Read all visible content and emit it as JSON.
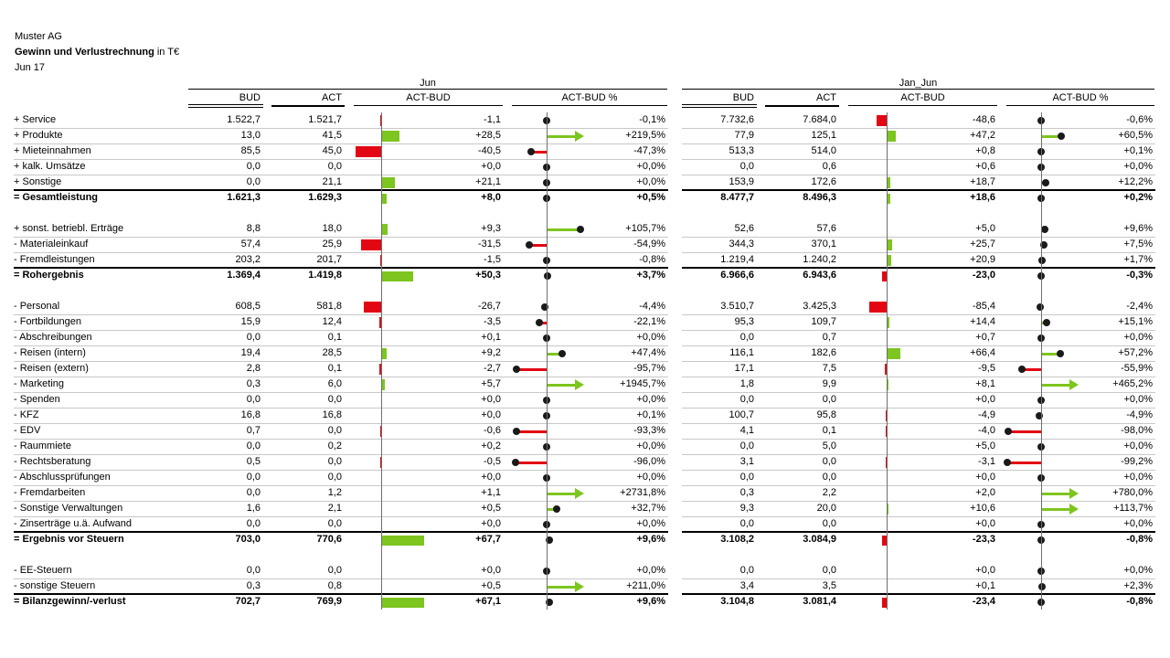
{
  "header": {
    "company": "Muster AG",
    "report_title": "Gewinn und Verlustrechnung",
    "unit": "in T€",
    "period": "Jun 17"
  },
  "colors": {
    "positive": "#7dc51f",
    "negative": "#e30613",
    "dot": "#1a1a1a",
    "axis": "#6e6e6e"
  },
  "sections": [
    {
      "key": "jun",
      "label": "Jun",
      "bud_label": "BUD",
      "act_label": "ACT",
      "abs_label": "ACT-BUD",
      "pct_label": "ACT-BUD %"
    },
    {
      "key": "jan_jun",
      "label": "Jan_Jun",
      "bud_label": "BUD",
      "act_label": "ACT",
      "abs_label": "ACT-BUD",
      "pct_label": "ACT-BUD %"
    }
  ],
  "chart_data": {
    "type": "table",
    "columns": [
      "BUD",
      "ACT",
      "ACT-BUD",
      "ACT-BUD %"
    ],
    "rows": [
      {
        "label": "+ Service",
        "jun": {
          "bud": "1.522,7",
          "act": "1.521,7",
          "abs": "-1,1",
          "pct": "-0,1%",
          "abs_v": -1.1,
          "pct_v": -0.1
        },
        "ytd": {
          "bud": "7.732,6",
          "act": "7.684,0",
          "abs": "-48,6",
          "pct": "-0,6%",
          "abs_v": -48.6,
          "pct_v": -0.6
        }
      },
      {
        "label": "+ Produkte",
        "jun": {
          "bud": "13,0",
          "act": "41,5",
          "abs": "+28,5",
          "pct": "+219,5%",
          "abs_v": 28.5,
          "pct_v": 219.5
        },
        "ytd": {
          "bud": "77,9",
          "act": "125,1",
          "abs": "+47,2",
          "pct": "+60,5%",
          "abs_v": 47.2,
          "pct_v": 60.5
        }
      },
      {
        "label": "+ Mieteinnahmen",
        "jun": {
          "bud": "85,5",
          "act": "45,0",
          "abs": "-40,5",
          "pct": "-47,3%",
          "abs_v": -40.5,
          "pct_v": -47.3
        },
        "ytd": {
          "bud": "513,3",
          "act": "514,0",
          "abs": "+0,8",
          "pct": "+0,1%",
          "abs_v": 0.8,
          "pct_v": 0.1
        }
      },
      {
        "label": "+ kalk. Umsätze",
        "jun": {
          "bud": "0,0",
          "act": "0,0",
          "abs": "+0,0",
          "pct": "+0,0%",
          "abs_v": 0.0,
          "pct_v": 0.0
        },
        "ytd": {
          "bud": "0,0",
          "act": "0,6",
          "abs": "+0,6",
          "pct": "+0,0%",
          "abs_v": 0.6,
          "pct_v": 0.0
        }
      },
      {
        "label": "+ Sonstige",
        "line": "black",
        "jun": {
          "bud": "0,0",
          "act": "21,1",
          "abs": "+21,1",
          "pct": "+0,0%",
          "abs_v": 21.1,
          "pct_v": 0.0
        },
        "ytd": {
          "bud": "153,9",
          "act": "172,6",
          "abs": "+18,7",
          "pct": "+12,2%",
          "abs_v": 18.7,
          "pct_v": 12.2
        }
      },
      {
        "label": "= Gesamtleistung",
        "bold": true,
        "jun": {
          "bud": "1.621,3",
          "act": "1.629,3",
          "abs": "+8,0",
          "pct": "+0,5%",
          "abs_v": 8.0,
          "pct_v": 0.5
        },
        "ytd": {
          "bud": "8.477,7",
          "act": "8.496,3",
          "abs": "+18,6",
          "pct": "+0,2%",
          "abs_v": 18.6,
          "pct_v": 0.2
        }
      },
      {
        "spacer": true
      },
      {
        "label": "+ sonst. betriebl. Erträge",
        "jun": {
          "bud": "8,8",
          "act": "18,0",
          "abs": "+9,3",
          "pct": "+105,7%",
          "abs_v": 9.3,
          "pct_v": 105.7
        },
        "ytd": {
          "bud": "52,6",
          "act": "57,6",
          "abs": "+5,0",
          "pct": "+9,6%",
          "abs_v": 5.0,
          "pct_v": 9.6
        }
      },
      {
        "label": "- Materialeinkauf",
        "jun": {
          "bud": "57,4",
          "act": "25,9",
          "abs": "-31,5",
          "pct": "-54,9%",
          "abs_v": -31.5,
          "pct_v": -54.9
        },
        "ytd": {
          "bud": "344,3",
          "act": "370,1",
          "abs": "+25,7",
          "pct": "+7,5%",
          "abs_v": 25.7,
          "pct_v": 7.5
        }
      },
      {
        "label": "- Fremdleistungen",
        "line": "black",
        "jun": {
          "bud": "203,2",
          "act": "201,7",
          "abs": "-1,5",
          "pct": "-0,8%",
          "abs_v": -1.5,
          "pct_v": -0.8
        },
        "ytd": {
          "bud": "1.219,4",
          "act": "1.240,2",
          "abs": "+20,9",
          "pct": "+1,7%",
          "abs_v": 20.9,
          "pct_v": 1.7
        }
      },
      {
        "label": "= Rohergebnis",
        "bold": true,
        "jun": {
          "bud": "1.369,4",
          "act": "1.419,8",
          "abs": "+50,3",
          "pct": "+3,7%",
          "abs_v": 50.3,
          "pct_v": 3.7
        },
        "ytd": {
          "bud": "6.966,6",
          "act": "6.943,6",
          "abs": "-23,0",
          "pct": "-0,3%",
          "abs_v": -23.0,
          "pct_v": -0.3
        }
      },
      {
        "spacer": true
      },
      {
        "label": "- Personal",
        "jun": {
          "bud": "608,5",
          "act": "581,8",
          "abs": "-26,7",
          "pct": "-4,4%",
          "abs_v": -26.7,
          "pct_v": -4.4
        },
        "ytd": {
          "bud": "3.510,7",
          "act": "3.425,3",
          "abs": "-85,4",
          "pct": "-2,4%",
          "abs_v": -85.4,
          "pct_v": -2.4
        }
      },
      {
        "label": "- Fortbildungen",
        "jun": {
          "bud": "15,9",
          "act": "12,4",
          "abs": "-3,5",
          "pct": "-22,1%",
          "abs_v": -3.5,
          "pct_v": -22.1
        },
        "ytd": {
          "bud": "95,3",
          "act": "109,7",
          "abs": "+14,4",
          "pct": "+15,1%",
          "abs_v": 14.4,
          "pct_v": 15.1
        }
      },
      {
        "label": "- Abschreibungen",
        "jun": {
          "bud": "0,0",
          "act": "0,1",
          "abs": "+0,1",
          "pct": "+0,0%",
          "abs_v": 0.1,
          "pct_v": 0.0
        },
        "ytd": {
          "bud": "0,0",
          "act": "0,7",
          "abs": "+0,7",
          "pct": "+0,0%",
          "abs_v": 0.7,
          "pct_v": 0.0
        }
      },
      {
        "label": "- Reisen (intern)",
        "jun": {
          "bud": "19,4",
          "act": "28,5",
          "abs": "+9,2",
          "pct": "+47,4%",
          "abs_v": 9.2,
          "pct_v": 47.4
        },
        "ytd": {
          "bud": "116,1",
          "act": "182,6",
          "abs": "+66,4",
          "pct": "+57,2%",
          "abs_v": 66.4,
          "pct_v": 57.2
        }
      },
      {
        "label": "- Reisen (extern)",
        "jun": {
          "bud": "2,8",
          "act": "0,1",
          "abs": "-2,7",
          "pct": "-95,7%",
          "abs_v": -2.7,
          "pct_v": -95.7
        },
        "ytd": {
          "bud": "17,1",
          "act": "7,5",
          "abs": "-9,5",
          "pct": "-55,9%",
          "abs_v": -9.5,
          "pct_v": -55.9
        }
      },
      {
        "label": "- Marketing",
        "jun": {
          "bud": "0,3",
          "act": "6,0",
          "abs": "+5,7",
          "pct": "+1945,7%",
          "abs_v": 5.7,
          "pct_v": 1945.7
        },
        "ytd": {
          "bud": "1,8",
          "act": "9,9",
          "abs": "+8,1",
          "pct": "+465,2%",
          "abs_v": 8.1,
          "pct_v": 465.2
        }
      },
      {
        "label": "- Spenden",
        "jun": {
          "bud": "0,0",
          "act": "0,0",
          "abs": "+0,0",
          "pct": "+0,0%",
          "abs_v": 0.0,
          "pct_v": 0.0
        },
        "ytd": {
          "bud": "0,0",
          "act": "0,0",
          "abs": "+0,0",
          "pct": "+0,0%",
          "abs_v": 0.0,
          "pct_v": 0.0
        }
      },
      {
        "label": "- KFZ",
        "jun": {
          "bud": "16,8",
          "act": "16,8",
          "abs": "+0,0",
          "pct": "+0,1%",
          "abs_v": 0.0,
          "pct_v": 0.1
        },
        "ytd": {
          "bud": "100,7",
          "act": "95,8",
          "abs": "-4,9",
          "pct": "-4,9%",
          "abs_v": -4.9,
          "pct_v": -4.9
        }
      },
      {
        "label": "- EDV",
        "jun": {
          "bud": "0,7",
          "act": "0,0",
          "abs": "-0,6",
          "pct": "-93,3%",
          "abs_v": -0.6,
          "pct_v": -93.3
        },
        "ytd": {
          "bud": "4,1",
          "act": "0,1",
          "abs": "-4,0",
          "pct": "-98,0%",
          "abs_v": -4.0,
          "pct_v": -98.0
        }
      },
      {
        "label": "- Raummiete",
        "jun": {
          "bud": "0,0",
          "act": "0,2",
          "abs": "+0,2",
          "pct": "+0,0%",
          "abs_v": 0.2,
          "pct_v": 0.0
        },
        "ytd": {
          "bud": "0,0",
          "act": "5,0",
          "abs": "+5,0",
          "pct": "+0,0%",
          "abs_v": 5.0,
          "pct_v": 0.0
        }
      },
      {
        "label": "- Rechtsberatung",
        "jun": {
          "bud": "0,5",
          "act": "0,0",
          "abs": "-0,5",
          "pct": "-96,0%",
          "abs_v": -0.5,
          "pct_v": -96.0
        },
        "ytd": {
          "bud": "3,1",
          "act": "0,0",
          "abs": "-3,1",
          "pct": "-99,2%",
          "abs_v": -3.1,
          "pct_v": -99.2
        }
      },
      {
        "label": "- Abschlussprüfungen",
        "jun": {
          "bud": "0,0",
          "act": "0,0",
          "abs": "+0,0",
          "pct": "+0,0%",
          "abs_v": 0.0,
          "pct_v": 0.0
        },
        "ytd": {
          "bud": "0,0",
          "act": "0,0",
          "abs": "+0,0",
          "pct": "+0,0%",
          "abs_v": 0.0,
          "pct_v": 0.0
        }
      },
      {
        "label": "- Fremdarbeiten",
        "jun": {
          "bud": "0,0",
          "act": "1,2",
          "abs": "+1,1",
          "pct": "+2731,8%",
          "abs_v": 1.1,
          "pct_v": 2731.8
        },
        "ytd": {
          "bud": "0,3",
          "act": "2,2",
          "abs": "+2,0",
          "pct": "+780,0%",
          "abs_v": 2.0,
          "pct_v": 780.0
        }
      },
      {
        "label": "- Sonstige Verwaltungen",
        "jun": {
          "bud": "1,6",
          "act": "2,1",
          "abs": "+0,5",
          "pct": "+32,7%",
          "abs_v": 0.5,
          "pct_v": 32.7
        },
        "ytd": {
          "bud": "9,3",
          "act": "20,0",
          "abs": "+10,6",
          "pct": "+113,7%",
          "abs_v": 10.6,
          "pct_v": 113.7
        }
      },
      {
        "label": "- Zinserträge u.ä. Aufwand",
        "line": "black",
        "jun": {
          "bud": "0,0",
          "act": "0,0",
          "abs": "+0,0",
          "pct": "+0,0%",
          "abs_v": 0.0,
          "pct_v": 0.0
        },
        "ytd": {
          "bud": "0,0",
          "act": "0,0",
          "abs": "+0,0",
          "pct": "+0,0%",
          "abs_v": 0.0,
          "pct_v": 0.0
        }
      },
      {
        "label": "= Ergebnis vor Steuern",
        "bold": true,
        "jun": {
          "bud": "703,0",
          "act": "770,6",
          "abs": "+67,7",
          "pct": "+9,6%",
          "abs_v": 67.7,
          "pct_v": 9.6
        },
        "ytd": {
          "bud": "3.108,2",
          "act": "3.084,9",
          "abs": "-23,3",
          "pct": "-0,8%",
          "abs_v": -23.3,
          "pct_v": -0.8
        }
      },
      {
        "spacer": true
      },
      {
        "label": "- EE-Steuern",
        "jun": {
          "bud": "0,0",
          "act": "0,0",
          "abs": "+0,0",
          "pct": "+0,0%",
          "abs_v": 0.0,
          "pct_v": 0.0
        },
        "ytd": {
          "bud": "0,0",
          "act": "0,0",
          "abs": "+0,0",
          "pct": "+0,0%",
          "abs_v": 0.0,
          "pct_v": 0.0
        }
      },
      {
        "label": "- sonstige Steuern",
        "line": "black",
        "jun": {
          "bud": "0,3",
          "act": "0,8",
          "abs": "+0,5",
          "pct": "+211,0%",
          "abs_v": 0.5,
          "pct_v": 211.0
        },
        "ytd": {
          "bud": "3,4",
          "act": "3,5",
          "abs": "+0,1",
          "pct": "+2,3%",
          "abs_v": 0.1,
          "pct_v": 2.3
        }
      },
      {
        "label": "= Bilanzgewinn/-verlust",
        "bold": true,
        "jun": {
          "bud": "702,7",
          "act": "769,9",
          "abs": "+67,1",
          "pct": "+9,6%",
          "abs_v": 67.1,
          "pct_v": 9.6
        },
        "ytd": {
          "bud": "3.104,8",
          "act": "3.081,4",
          "abs": "-23,4",
          "pct": "-0,8%",
          "abs_v": -23.4,
          "pct_v": -0.8
        }
      }
    ]
  }
}
